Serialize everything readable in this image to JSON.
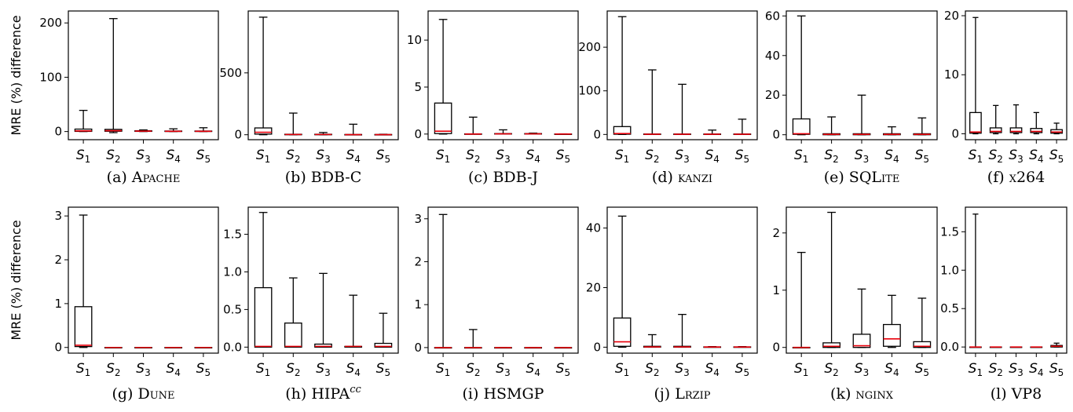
{
  "figure": {
    "ylabel": "MRE (%) difference"
  },
  "chart_data": [
    {
      "type": "box",
      "caption": "(a) Apache",
      "ylabel": "MRE (%) difference",
      "ylim": [
        -15,
        222
      ],
      "yticks": [
        {
          "v": 0,
          "l": "0"
        },
        {
          "v": 100,
          "l": "100"
        },
        {
          "v": 200,
          "l": "200"
        }
      ],
      "categories": [
        "S1",
        "S2",
        "S3",
        "S4",
        "S5"
      ],
      "boxes": [
        {
          "min": 0,
          "q1": 0.3,
          "median": 1.2,
          "q3": 4.5,
          "max": 39
        },
        {
          "min": -2,
          "q1": 0.5,
          "median": 1.5,
          "q3": 4,
          "max": 208
        },
        {
          "min": 0,
          "q1": 0.3,
          "median": 0.8,
          "q3": 1.5,
          "max": 3
        },
        {
          "min": 0,
          "q1": 0.2,
          "median": 0.5,
          "q3": 1,
          "max": 5
        },
        {
          "min": 0,
          "q1": 0.2,
          "median": 0.5,
          "q3": 1,
          "max": 7
        }
      ]
    },
    {
      "type": "box",
      "caption": "(b) BDB-C",
      "ylabel": "",
      "ylim": [
        -40,
        1000
      ],
      "yticks": [
        {
          "v": 0,
          "l": "0"
        },
        {
          "v": 500,
          "l": "500"
        }
      ],
      "categories": [
        "S1",
        "S2",
        "S3",
        "S4",
        "S5"
      ],
      "boxes": [
        {
          "min": 0,
          "q1": 5,
          "median": 20,
          "q3": 55,
          "max": 950
        },
        {
          "min": 0,
          "q1": 0,
          "median": 2,
          "q3": 4,
          "max": 175
        },
        {
          "min": 0,
          "q1": 0,
          "median": 2,
          "q3": 4,
          "max": 18
        },
        {
          "min": 0,
          "q1": 0,
          "median": 1,
          "q3": 2,
          "max": 85
        },
        {
          "min": 0,
          "q1": 0,
          "median": 1,
          "q3": 2,
          "max": 4
        }
      ]
    },
    {
      "type": "box",
      "caption": "(c) BDB-J",
      "ylabel": "",
      "ylim": [
        -0.6,
        13.1
      ],
      "yticks": [
        {
          "v": 0,
          "l": "0"
        },
        {
          "v": 5,
          "l": "5"
        },
        {
          "v": 10,
          "l": "10"
        }
      ],
      "categories": [
        "S1",
        "S2",
        "S3",
        "S4",
        "S5"
      ],
      "boxes": [
        {
          "min": 0,
          "q1": 0.05,
          "median": 0.3,
          "q3": 3.3,
          "max": 12.2
        },
        {
          "min": 0,
          "q1": 0,
          "median": 0,
          "q3": 0.02,
          "max": 1.8
        },
        {
          "min": 0,
          "q1": 0,
          "median": 0.02,
          "q3": 0.05,
          "max": 0.45
        },
        {
          "min": 0,
          "q1": 0,
          "median": 0.02,
          "q3": 0.05,
          "max": 0.1
        },
        {
          "min": 0,
          "q1": 0,
          "median": 0,
          "q3": 0.01,
          "max": 0.02
        }
      ]
    },
    {
      "type": "box",
      "caption": "(d) kanzi",
      "ylabel": "",
      "ylim": [
        -12,
        283
      ],
      "yticks": [
        {
          "v": 0,
          "l": "0"
        },
        {
          "v": 100,
          "l": "100"
        },
        {
          "v": 200,
          "l": "200"
        }
      ],
      "categories": [
        "S1",
        "S2",
        "S3",
        "S4",
        "S5"
      ],
      "boxes": [
        {
          "min": 0,
          "q1": 0.5,
          "median": 2,
          "q3": 18,
          "max": 270
        },
        {
          "min": 0,
          "q1": 0,
          "median": 0.5,
          "q3": 1,
          "max": 148
        },
        {
          "min": 0,
          "q1": 0,
          "median": 0.5,
          "q3": 1,
          "max": 115
        },
        {
          "min": 0,
          "q1": 0,
          "median": 0.5,
          "q3": 1,
          "max": 10
        },
        {
          "min": 0,
          "q1": 0,
          "median": 0.5,
          "q3": 1,
          "max": 35
        }
      ]
    },
    {
      "type": "box",
      "caption": "(e) SQLite",
      "ylabel": "",
      "ylim": [
        -2.5,
        62.5
      ],
      "yticks": [
        {
          "v": 0,
          "l": "0"
        },
        {
          "v": 20,
          "l": "20"
        },
        {
          "v": 40,
          "l": "40"
        },
        {
          "v": 60,
          "l": "60"
        }
      ],
      "categories": [
        "S1",
        "S2",
        "S3",
        "S4",
        "S5"
      ],
      "boxes": [
        {
          "min": 0,
          "q1": 0.2,
          "median": 0.5,
          "q3": 8,
          "max": 60
        },
        {
          "min": 0,
          "q1": 0,
          "median": 0.2,
          "q3": 0.5,
          "max": 9
        },
        {
          "min": 0,
          "q1": 0,
          "median": 0.2,
          "q3": 0.5,
          "max": 20
        },
        {
          "min": 0,
          "q1": 0,
          "median": 0.2,
          "q3": 0.5,
          "max": 4
        },
        {
          "min": 0,
          "q1": 0,
          "median": 0.2,
          "q3": 0.5,
          "max": 8.5
        }
      ]
    },
    {
      "type": "box",
      "caption": "(f) x264",
      "ylabel": "",
      "ylim": [
        -1,
        20.8
      ],
      "yticks": [
        {
          "v": 0,
          "l": "0"
        },
        {
          "v": 10,
          "l": "10"
        },
        {
          "v": 20,
          "l": "20"
        }
      ],
      "categories": [
        "S1",
        "S2",
        "S3",
        "S4",
        "S5"
      ],
      "boxes": [
        {
          "min": 0,
          "q1": 0.1,
          "median": 0.3,
          "q3": 3.6,
          "max": 19.7
        },
        {
          "min": 0,
          "q1": 0.2,
          "median": 0.4,
          "q3": 1,
          "max": 4.8
        },
        {
          "min": 0,
          "q1": 0.2,
          "median": 0.4,
          "q3": 1,
          "max": 4.9
        },
        {
          "min": 0,
          "q1": 0.2,
          "median": 0.4,
          "q3": 0.9,
          "max": 3.6
        },
        {
          "min": 0,
          "q1": 0.1,
          "median": 0.3,
          "q3": 0.7,
          "max": 1.8
        }
      ]
    },
    {
      "type": "box",
      "caption": "(g) Dune",
      "ylabel": "MRE (%) difference",
      "ylim": [
        -0.13,
        3.2
      ],
      "yticks": [
        {
          "v": 0,
          "l": "0"
        },
        {
          "v": 1,
          "l": "1"
        },
        {
          "v": 2,
          "l": "2"
        },
        {
          "v": 3,
          "l": "3"
        }
      ],
      "categories": [
        "S1",
        "S2",
        "S3",
        "S4",
        "S5"
      ],
      "boxes": [
        {
          "min": 0,
          "q1": 0.02,
          "median": 0.05,
          "q3": 0.93,
          "max": 3.02
        },
        {
          "min": 0,
          "q1": 0,
          "median": 0,
          "q3": 0,
          "max": 0
        },
        {
          "min": 0,
          "q1": 0,
          "median": 0,
          "q3": 0,
          "max": 0
        },
        {
          "min": 0,
          "q1": 0,
          "median": 0,
          "q3": 0,
          "max": 0
        },
        {
          "min": 0,
          "q1": 0,
          "median": 0,
          "q3": 0,
          "max": 0
        }
      ]
    },
    {
      "type": "box",
      "caption": "(h) HIPAcc",
      "ylabel": "",
      "ylim": [
        -0.08,
        1.86
      ],
      "yticks": [
        {
          "v": 0,
          "l": "0.0"
        },
        {
          "v": 0.5,
          "l": "0.5"
        },
        {
          "v": 1,
          "l": "1.0"
        },
        {
          "v": 1.5,
          "l": "1.5"
        }
      ],
      "categories": [
        "S1",
        "S2",
        "S3",
        "S4",
        "S5"
      ],
      "boxes": [
        {
          "min": 0,
          "q1": 0,
          "median": 0.01,
          "q3": 0.79,
          "max": 1.79
        },
        {
          "min": 0,
          "q1": 0,
          "median": 0.01,
          "q3": 0.32,
          "max": 0.92
        },
        {
          "min": 0,
          "q1": 0,
          "median": 0.01,
          "q3": 0.04,
          "max": 0.98
        },
        {
          "min": 0,
          "q1": 0,
          "median": 0.01,
          "q3": 0.01,
          "max": 0.69
        },
        {
          "min": 0,
          "q1": 0,
          "median": 0.01,
          "q3": 0.05,
          "max": 0.45
        }
      ]
    },
    {
      "type": "box",
      "caption": "(i) HSMGP",
      "ylabel": "",
      "ylim": [
        -0.13,
        3.27
      ],
      "yticks": [
        {
          "v": 0,
          "l": "0"
        },
        {
          "v": 1,
          "l": "1"
        },
        {
          "v": 2,
          "l": "2"
        },
        {
          "v": 3,
          "l": "3"
        }
      ],
      "categories": [
        "S1",
        "S2",
        "S3",
        "S4",
        "S5"
      ],
      "boxes": [
        {
          "min": 0,
          "q1": 0,
          "median": 0,
          "q3": 0,
          "max": 3.1
        },
        {
          "min": 0,
          "q1": 0,
          "median": 0,
          "q3": 0,
          "max": 0.42
        },
        {
          "min": 0,
          "q1": 0,
          "median": 0,
          "q3": 0,
          "max": 0
        },
        {
          "min": 0,
          "q1": 0,
          "median": 0,
          "q3": 0,
          "max": 0
        },
        {
          "min": 0,
          "q1": 0,
          "median": 0,
          "q3": 0,
          "max": 0
        }
      ]
    },
    {
      "type": "box",
      "caption": "(j) Lrzip",
      "ylabel": "",
      "ylim": [
        -2,
        47
      ],
      "yticks": [
        {
          "v": 0,
          "l": "0"
        },
        {
          "v": 20,
          "l": "20"
        },
        {
          "v": 40,
          "l": "40"
        }
      ],
      "categories": [
        "S1",
        "S2",
        "S3",
        "S4",
        "S5"
      ],
      "boxes": [
        {
          "min": 0,
          "q1": 0.3,
          "median": 1.8,
          "q3": 9.8,
          "max": 44
        },
        {
          "min": 0,
          "q1": 0,
          "median": 0.1,
          "q3": 0.3,
          "max": 4.2
        },
        {
          "min": 0,
          "q1": 0,
          "median": 0.1,
          "q3": 0.3,
          "max": 11
        },
        {
          "min": 0,
          "q1": 0,
          "median": 0.05,
          "q3": 0.1,
          "max": 0.2
        },
        {
          "min": 0,
          "q1": 0,
          "median": 0.05,
          "q3": 0.1,
          "max": 0.2
        }
      ]
    },
    {
      "type": "box",
      "caption": "(k) nginx",
      "ylabel": "",
      "ylim": [
        -0.1,
        2.45
      ],
      "yticks": [
        {
          "v": 0,
          "l": "0"
        },
        {
          "v": 1,
          "l": "1"
        },
        {
          "v": 2,
          "l": "2"
        }
      ],
      "categories": [
        "S1",
        "S2",
        "S3",
        "S4",
        "S5"
      ],
      "boxes": [
        {
          "min": 0,
          "q1": 0,
          "median": 0,
          "q3": 0,
          "max": 1.66
        },
        {
          "min": 0,
          "q1": 0,
          "median": 0.02,
          "q3": 0.08,
          "max": 2.36
        },
        {
          "min": 0,
          "q1": 0,
          "median": 0.03,
          "q3": 0.23,
          "max": 1.02
        },
        {
          "min": 0,
          "q1": 0.02,
          "median": 0.15,
          "q3": 0.4,
          "max": 0.91
        },
        {
          "min": 0,
          "q1": 0,
          "median": 0.02,
          "q3": 0.1,
          "max": 0.86
        }
      ]
    },
    {
      "type": "box",
      "caption": "(l) VP8",
      "ylabel": "",
      "ylim": [
        -0.08,
        1.82
      ],
      "yticks": [
        {
          "v": 0,
          "l": "0.0"
        },
        {
          "v": 0.5,
          "l": "0.5"
        },
        {
          "v": 1,
          "l": "1.0"
        },
        {
          "v": 1.5,
          "l": "1.5"
        }
      ],
      "categories": [
        "S1",
        "S2",
        "S3",
        "S4",
        "S5"
      ],
      "boxes": [
        {
          "min": 0,
          "q1": 0,
          "median": 0,
          "q3": 0,
          "max": 1.73
        },
        {
          "min": 0,
          "q1": 0,
          "median": 0,
          "q3": 0,
          "max": 0
        },
        {
          "min": 0,
          "q1": 0,
          "median": 0,
          "q3": 0,
          "max": 0
        },
        {
          "min": 0,
          "q1": 0,
          "median": 0,
          "q3": 0,
          "max": 0
        },
        {
          "min": 0,
          "q1": 0,
          "median": 0.01,
          "q3": 0.02,
          "max": 0.05
        }
      ]
    }
  ],
  "colors": {
    "box": "#000000",
    "median": "#e8000b"
  }
}
